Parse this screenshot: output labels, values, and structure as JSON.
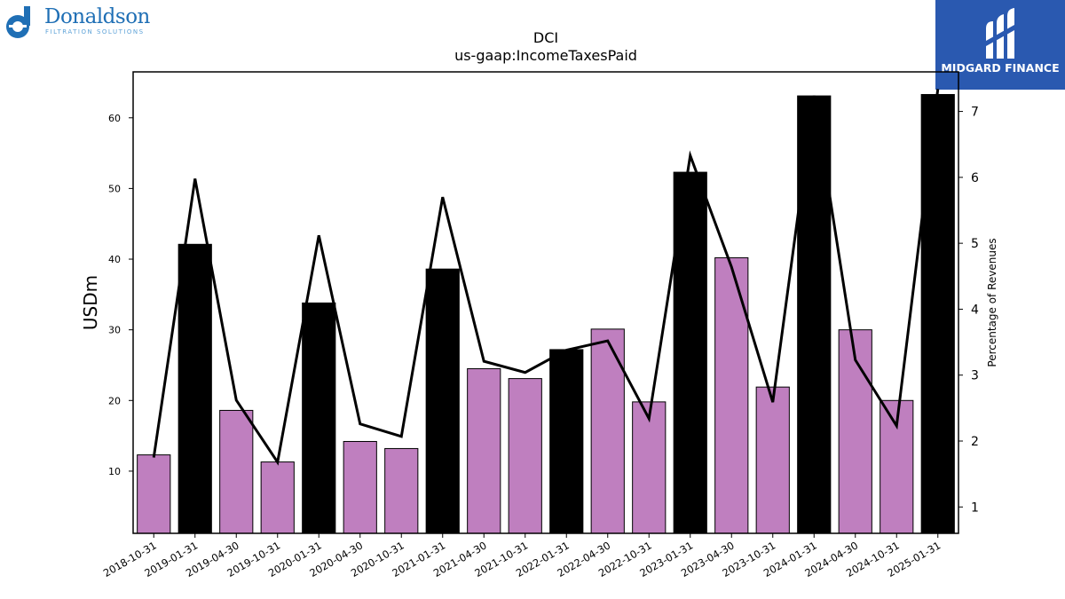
{
  "logo_left": {
    "name": "Donaldson",
    "tagline": "FILTRATION SOLUTIONS",
    "icon": "donaldson-d-icon",
    "color": "#1f6fb5"
  },
  "logo_right": {
    "name": "MIDGARD FINANCE",
    "icon": "midgard-m-icon",
    "bg_color": "#2a59b0"
  },
  "chart_data": {
    "type": "bar",
    "title": "DCI",
    "subtitle": "us-gaap:IncomeTaxesPaid",
    "ylabel": "USDm",
    "y2label": "Percentage of Revenues",
    "ylim": [
      1.2,
      66.5
    ],
    "y2lim": [
      0.6,
      7.6
    ],
    "yticks": [
      10,
      20,
      30,
      40,
      50,
      60
    ],
    "y2ticks": [
      1,
      2,
      3,
      4,
      5,
      6,
      7
    ],
    "categories": [
      "2018-10-31",
      "2019-01-31",
      "2019-04-30",
      "2019-10-31",
      "2020-01-31",
      "2020-04-30",
      "2020-10-31",
      "2021-01-31",
      "2021-04-30",
      "2021-10-31",
      "2022-01-31",
      "2022-04-30",
      "2022-10-31",
      "2023-01-31",
      "2023-04-30",
      "2023-10-31",
      "2024-01-31",
      "2024-04-30",
      "2024-10-31",
      "2025-01-31"
    ],
    "series": [
      {
        "type": "bar",
        "values": [
          12.3,
          42.1,
          18.6,
          11.3,
          33.8,
          14.2,
          13.2,
          38.6,
          24.5,
          23.1,
          27.2,
          30.1,
          19.8,
          52.3,
          40.2,
          21.9,
          63.1,
          30.0,
          20.0,
          63.3
        ],
        "colors": [
          "#bf7fbf",
          "#000000",
          "#bf7fbf",
          "#bf7fbf",
          "#000000",
          "#bf7fbf",
          "#bf7fbf",
          "#000000",
          "#bf7fbf",
          "#bf7fbf",
          "#000000",
          "#bf7fbf",
          "#bf7fbf",
          "#000000",
          "#bf7fbf",
          "#bf7fbf",
          "#000000",
          "#bf7fbf",
          "#bf7fbf",
          "#000000"
        ]
      },
      {
        "type": "line",
        "axis": "right",
        "values": [
          1.75,
          5.98,
          2.62,
          1.68,
          5.12,
          2.26,
          2.07,
          5.7,
          3.21,
          3.04,
          3.38,
          3.52,
          2.34,
          6.33,
          4.64,
          2.59,
          7.24,
          3.23,
          2.23,
          7.34
        ]
      }
    ],
    "grid": false,
    "legend": "none"
  }
}
